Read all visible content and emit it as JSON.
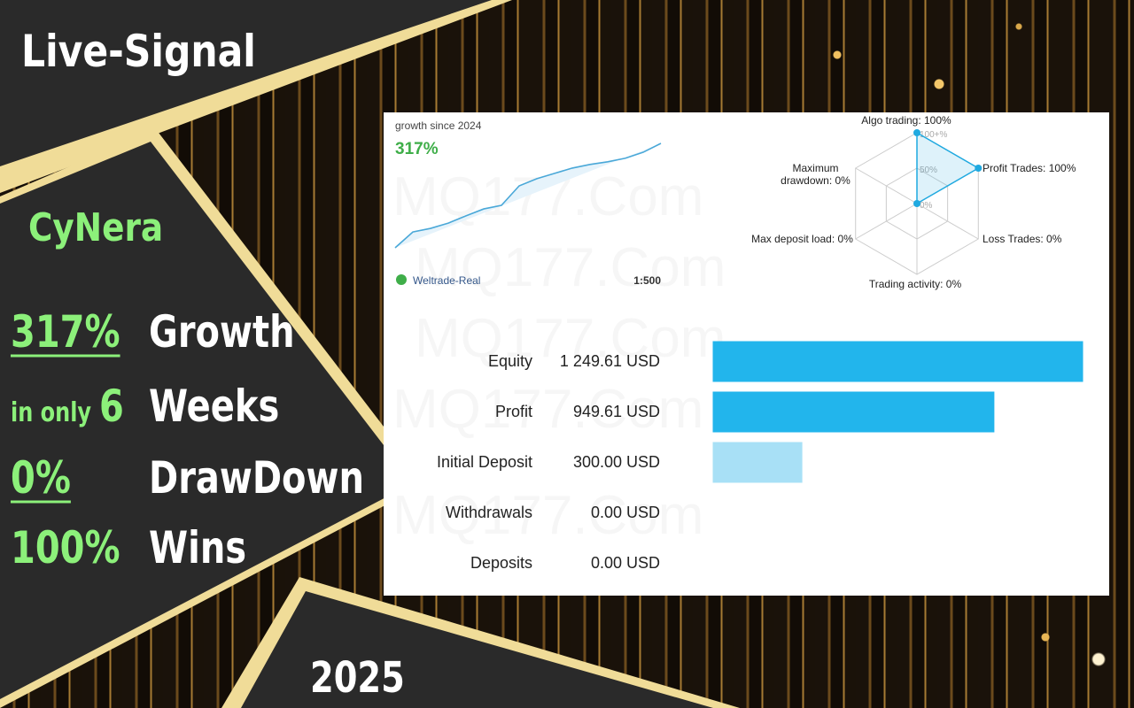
{
  "banner": {
    "title": "Live-Signal",
    "name": "CyNera",
    "stats": [
      {
        "value": "317%",
        "label": "Growth"
      },
      {
        "prefix": "in only",
        "value": "6",
        "label": "Weeks"
      },
      {
        "value": "0%",
        "label": "DrawDown"
      },
      {
        "value": "100%",
        "label": "Wins"
      }
    ],
    "year": "2025"
  },
  "watermark": "MQ177.Com",
  "chart_data": [
    {
      "type": "line",
      "title": "growth since 2024",
      "subtitle": "317%",
      "broker": "Weltrade-Real",
      "leverage": "1:500",
      "color": "#4aa8d8",
      "values": [
        0,
        48,
        59,
        75,
        97,
        118,
        129,
        188,
        210,
        226,
        242,
        253,
        261,
        272,
        290,
        317
      ]
    },
    {
      "type": "radar",
      "color": "#1fa9e0",
      "categories": [
        "Algo trading: 100%",
        "Profit Trades: 100%",
        "Loss Trades: 0%",
        "Trading activity: 0%",
        "Max deposit load: 0%",
        "Maximum drawdown: 0%"
      ],
      "values": [
        100,
        100,
        0,
        0,
        0,
        0
      ],
      "rlim": [
        0,
        100
      ],
      "rticks": [
        {
          "value": 0,
          "label": "0%"
        },
        {
          "value": 50,
          "label": "50%"
        },
        {
          "value": 100,
          "label": "100+%"
        }
      ]
    },
    {
      "type": "bar",
      "orientation": "horizontal",
      "categories": [
        "Equity",
        "Profit",
        "Initial Deposit",
        "Withdrawals",
        "Deposits"
      ],
      "values": [
        1249.61,
        949.61,
        300,
        0,
        0
      ],
      "value_labels": [
        "1 249.61 USD",
        "949.61 USD",
        "300.00 USD",
        "0.00 USD",
        "0.00 USD"
      ],
      "colors": [
        "#22b5ec",
        "#22b5ec",
        "#a8e0f6",
        "#a8d8ee",
        "#a8d8ee"
      ]
    }
  ]
}
